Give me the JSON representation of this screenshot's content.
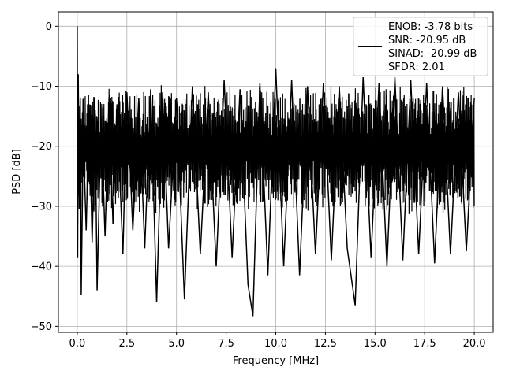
{
  "chart_data": {
    "type": "line",
    "title": "",
    "xlabel": "Frequency [MHz]",
    "ylabel": "PSD [dB]",
    "xlim": [
      -0.95,
      20.95
    ],
    "ylim": [
      -51.0,
      2.4
    ],
    "x_ticks": [
      0.0,
      2.5,
      5.0,
      7.5,
      10.0,
      12.5,
      15.0,
      17.5,
      20.0
    ],
    "x_tick_labels": [
      "0.0",
      "2.5",
      "5.0",
      "7.5",
      "10.0",
      "12.5",
      "15.0",
      "17.5",
      "20.0"
    ],
    "y_ticks": [
      0,
      -10,
      -20,
      -30,
      -40,
      -50
    ],
    "y_tick_labels": [
      "0",
      "−10",
      "−20",
      "−30",
      "−40",
      "−50"
    ],
    "grid": true,
    "legend_position": "top-right",
    "series": [
      {
        "name": "ENOB: -3.78 bits\nSNR: -20.95 dB\nSINAD: -20.99 dB\nSFDR: 2.01",
        "legend_lines": [
          "ENOB: -3.78 bits",
          "SNR: -20.95 dB",
          "SINAD: -20.99 dB",
          "SFDR: 2.01"
        ],
        "color": "#000000",
        "x": [
          0.0,
          0.02,
          0.05,
          0.1,
          0.15,
          0.2,
          0.3,
          0.45,
          0.6,
          0.75,
          0.9,
          1.0,
          1.2,
          1.4,
          1.6,
          1.8,
          2.0,
          2.3,
          2.5,
          2.8,
          3.1,
          3.4,
          3.7,
          4.0,
          4.3,
          4.6,
          5.0,
          5.4,
          5.8,
          6.2,
          6.6,
          7.0,
          7.4,
          7.8,
          8.2,
          8.6,
          8.85,
          9.2,
          9.6,
          10.0,
          10.4,
          10.8,
          11.2,
          11.6,
          12.0,
          12.4,
          12.8,
          13.2,
          13.6,
          14.0,
          14.4,
          14.8,
          15.2,
          15.6,
          16.0,
          16.4,
          16.8,
          17.2,
          17.6,
          18.0,
          18.4,
          18.8,
          19.2,
          19.6,
          20.0
        ],
        "values": [
          0.0,
          -38.5,
          -8.0,
          -30.5,
          -12.0,
          -44.7,
          -18.0,
          -34.0,
          -13.0,
          -36.0,
          -14.0,
          -44.0,
          -15.0,
          -35.0,
          -12.0,
          -33.0,
          -13.0,
          -38.0,
          -11.0,
          -34.0,
          -12.0,
          -37.0,
          -10.5,
          -46.0,
          -11.0,
          -37.0,
          -12.0,
          -45.5,
          -10.0,
          -38.0,
          -11.0,
          -40.0,
          -9.0,
          -38.5,
          -10.5,
          -43.0,
          -48.3,
          -9.5,
          -41.5,
          -7.0,
          -40.0,
          -9.0,
          -41.5,
          -10.0,
          -38.0,
          -9.5,
          -39.0,
          -10.0,
          -37.0,
          -46.5,
          -8.5,
          -38.5,
          -9.5,
          -40.0,
          -8.5,
          -39.0,
          -9.0,
          -38.0,
          -9.5,
          -39.5,
          -10.0,
          -38.0,
          -11.0,
          -37.5,
          -12.0
        ]
      }
    ]
  }
}
